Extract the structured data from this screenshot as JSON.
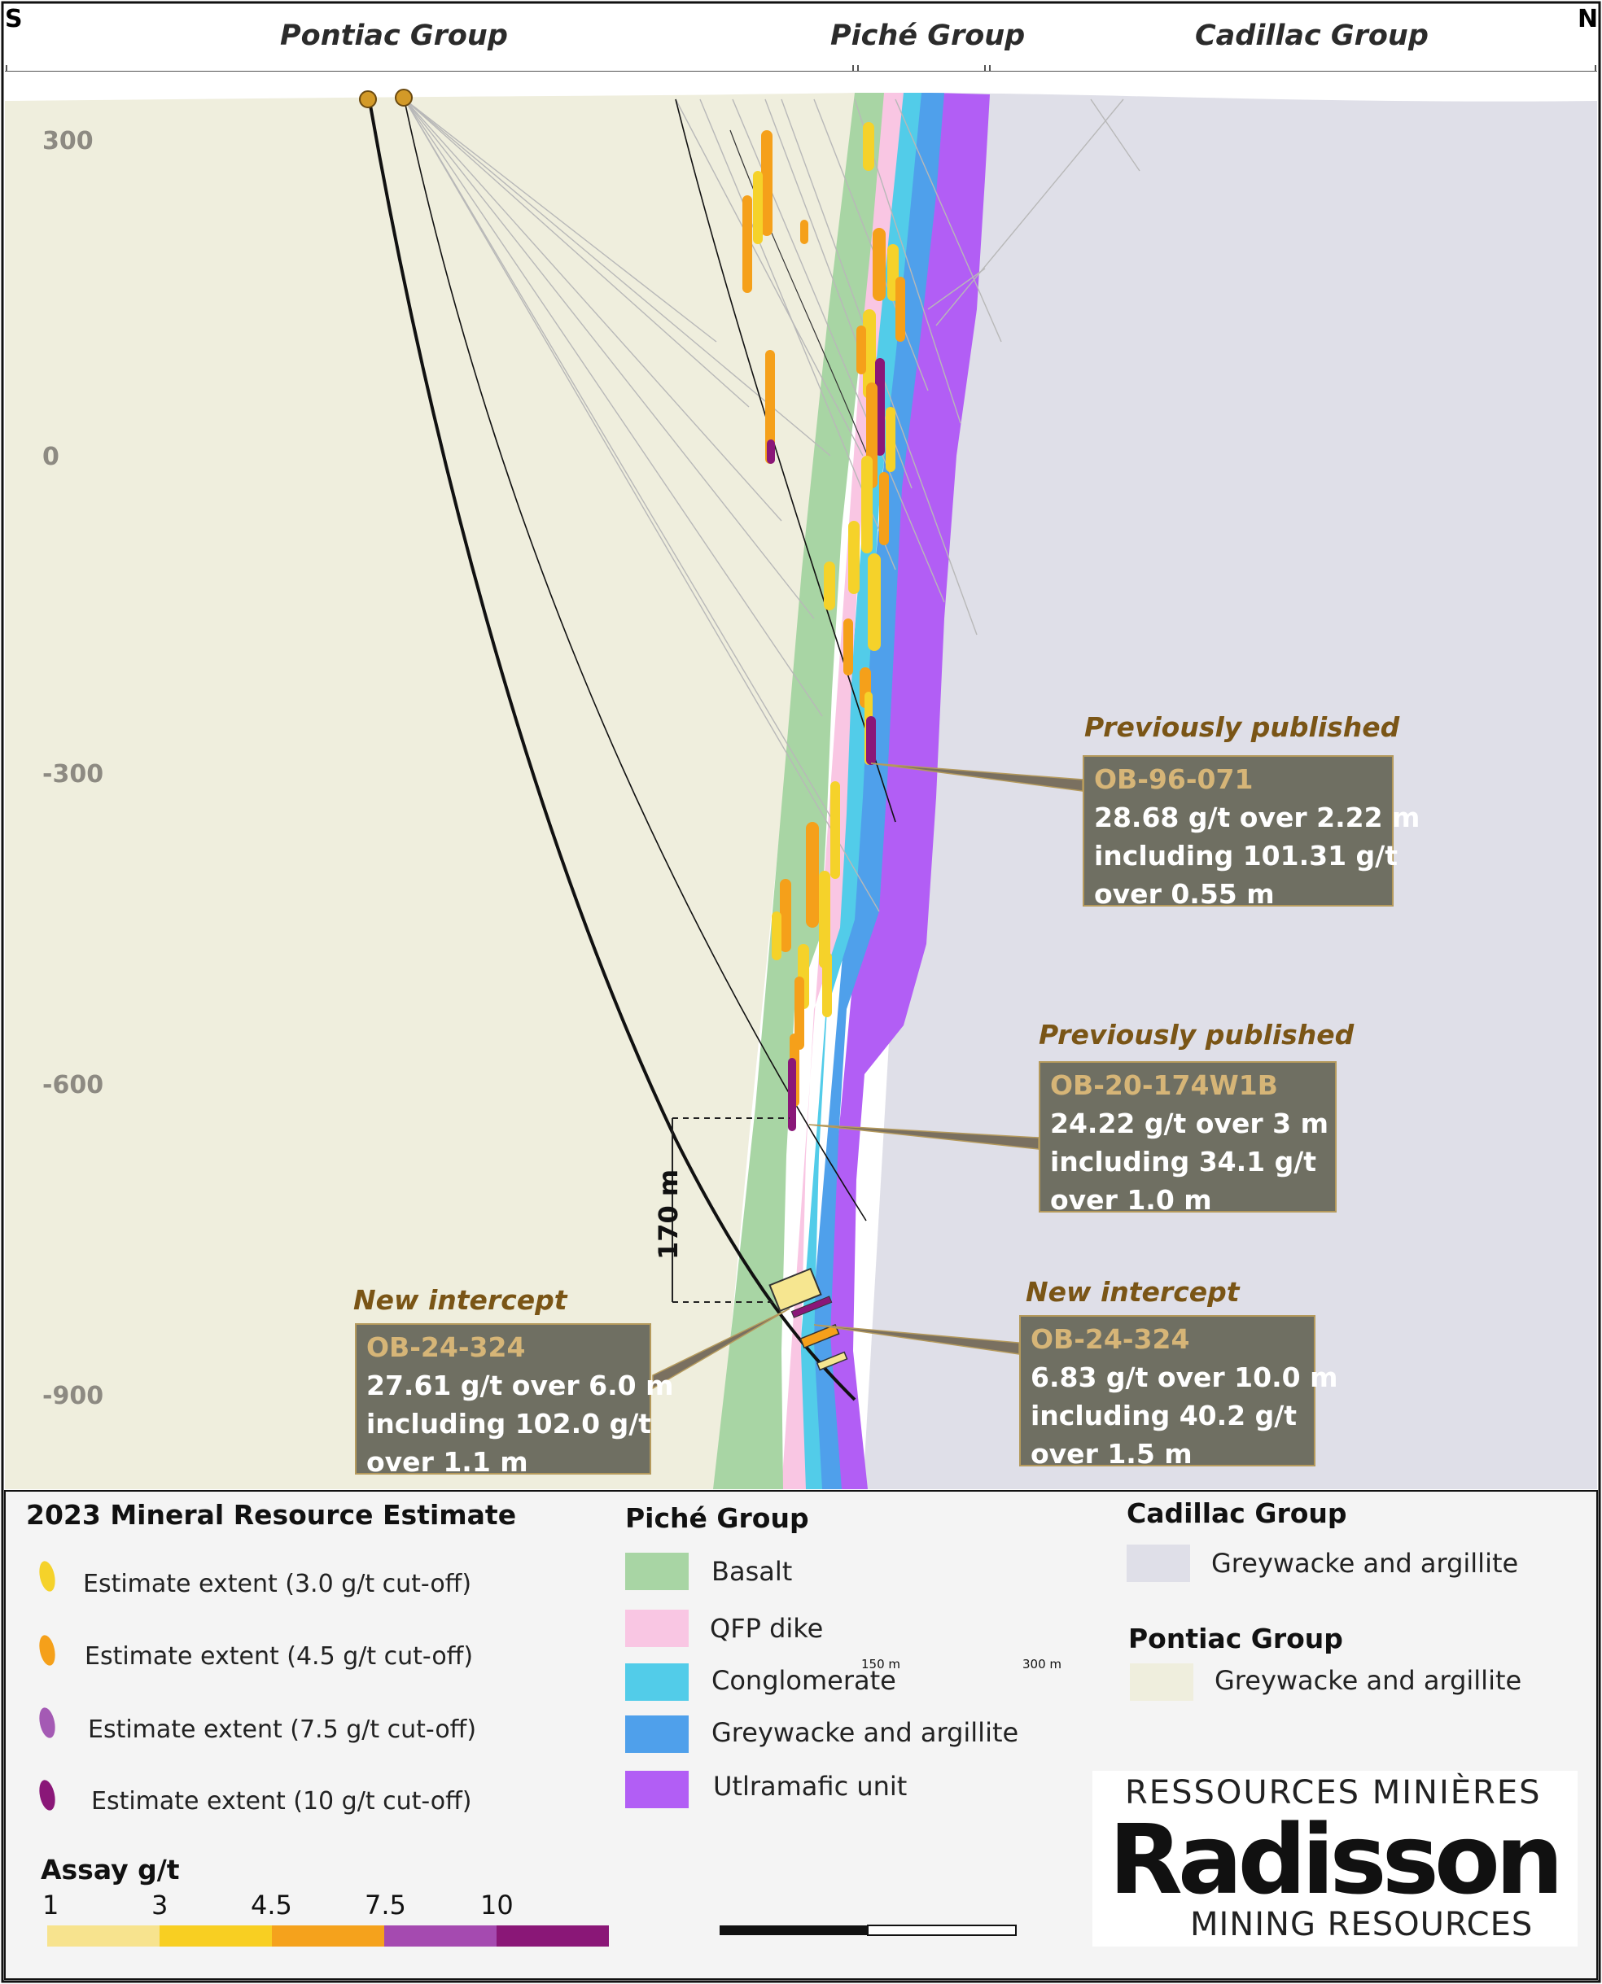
{
  "section": {
    "direction_left": "S",
    "direction_right": "N",
    "groups": [
      "Pontiac Group",
      "Piché Group",
      "Cadillac Group"
    ],
    "elevations": [
      "300",
      "0",
      "-300",
      "-600",
      "-900"
    ],
    "dimension": "170 m"
  },
  "callouts": [
    {
      "tag": "Previously published",
      "hole": "OB-96-071",
      "lines": [
        "28.68 g/t over 2.22 m",
        "including 101.31 g/t",
        "over 0.55 m"
      ]
    },
    {
      "tag": "Previously published",
      "hole": "OB-20-174W1B",
      "lines": [
        "24.22 g/t over 3 m",
        "including 34.1 g/t",
        "over 1.0 m"
      ]
    },
    {
      "tag": "New intercept",
      "hole": "OB-24-324",
      "lines": [
        "27.61 g/t over 6.0 m",
        "including 102.0 g/t",
        "over 1.1 m"
      ]
    },
    {
      "tag": "New intercept",
      "hole": "OB-24-324",
      "lines": [
        "6.83 g/t over 10.0 m",
        "including 40.2 g/t",
        "over 1.5 m"
      ]
    }
  ],
  "legend": {
    "estimate_title": "2023 Mineral Resource Estimate",
    "estimates": [
      {
        "label": "Estimate extent (3.0  g/t cut-off)",
        "color": "#f5d22a"
      },
      {
        "label": "Estimate extent (4.5  g/t cut-off)",
        "color": "#f5a01a"
      },
      {
        "label": "Estimate extent (7.5 g/t cut-off)",
        "color": "#a45ab4"
      },
      {
        "label": "Estimate extent (10 g/t cut-off)",
        "color": "#8a1778"
      }
    ],
    "piche_title": "Piché Group",
    "piche_units": [
      {
        "label": "Basalt",
        "color": "#a8d5a4"
      },
      {
        "label": "QFP dike",
        "color": "#f9c6e3"
      },
      {
        "label": "Conglomerate",
        "color": "#52cce9"
      },
      {
        "label": "Greywacke and argillite",
        "color": "#4fa0eb"
      },
      {
        "label": "Utlramafic unit",
        "color": "#b25ef5"
      }
    ],
    "cadillac_title": "Cadillac Group",
    "cadillac_unit": {
      "label": "Greywacke and argillite",
      "color": "#dfdfe8"
    },
    "pontiac_title": "Pontiac Group",
    "pontiac_unit": {
      "label": "Greywacke and argillite",
      "color": "#efeedd"
    },
    "assay_title": "Assay g/t",
    "assay_ticks": [
      "1",
      "3",
      "4.5",
      "7.5",
      "10"
    ],
    "assay_colors": [
      "#f7e38e",
      "#f8cf22",
      "#f5a21c",
      "#a54ab0",
      "#8a1777"
    ],
    "scale_labels": [
      "150 m",
      "300 m"
    ]
  },
  "logo": {
    "top": "RESSOURCES MINIÈRES",
    "main": "Radisson",
    "bottom": "MINING RESOURCES"
  }
}
